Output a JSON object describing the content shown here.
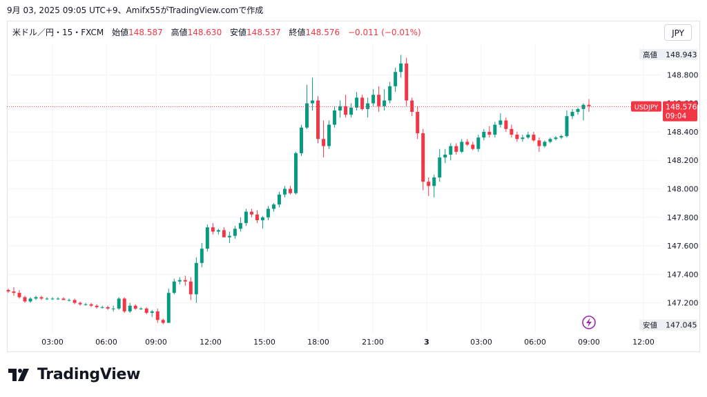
{
  "caption": "9月 03, 2025 09:05 UTC+9、Amifx55がTradingView.comで作成",
  "legend": {
    "symbol": "米ドル／円・15・FXCM",
    "open_label": "始値",
    "open": "148.587",
    "high_label": "高値",
    "high": "148.630",
    "low_label": "安値",
    "low": "148.537",
    "close_label": "終値",
    "close": "148.576",
    "change": "−0.011 (−0.01%)"
  },
  "currency_button": "JPY",
  "brand": "TradingView",
  "colors": {
    "up": "#089981",
    "down": "#f23645",
    "grid": "#f0f3fa",
    "axis_text": "#131722",
    "price_line": "#f23645"
  },
  "chart_data": {
    "type": "candlestick",
    "symbol": "USDJPY",
    "interval": "15",
    "x_ticks": [
      "03:00",
      "06:00",
      "09:00",
      "12:00",
      "15:00",
      "18:00",
      "21:00",
      "3",
      "03:00",
      "06:00",
      "09:00",
      "12:00"
    ],
    "y_ticks": [
      "148.800",
      "148.600",
      "148.400",
      "148.200",
      "148.000",
      "147.800",
      "147.600",
      "147.400",
      "147.200"
    ],
    "ylim": [
      146.99,
      149.015
    ],
    "high_marker": {
      "label": "高値",
      "value": "148.943"
    },
    "low_marker": {
      "label": "安値",
      "value": "147.045"
    },
    "last_price": {
      "symbol": "USDJPY",
      "value": "148.576",
      "time": "09:04"
    },
    "ohlc": [
      [
        147.29,
        147.3,
        147.27,
        147.28
      ],
      [
        147.28,
        147.31,
        147.25,
        147.27
      ],
      [
        147.27,
        147.29,
        147.23,
        147.24
      ],
      [
        147.24,
        147.25,
        147.2,
        147.21
      ],
      [
        147.21,
        147.24,
        147.2,
        147.23
      ],
      [
        147.23,
        147.25,
        147.22,
        147.24
      ],
      [
        147.24,
        147.25,
        147.22,
        147.23
      ],
      [
        147.23,
        147.24,
        147.22,
        147.23
      ],
      [
        147.23,
        147.24,
        147.22,
        147.23
      ],
      [
        147.23,
        147.24,
        147.22,
        147.23
      ],
      [
        147.23,
        147.24,
        147.22,
        147.22
      ],
      [
        147.22,
        147.23,
        147.21,
        147.22
      ],
      [
        147.22,
        147.23,
        147.19,
        147.2
      ],
      [
        147.2,
        147.21,
        147.18,
        147.19
      ],
      [
        147.19,
        147.2,
        147.18,
        147.19
      ],
      [
        147.19,
        147.2,
        147.17,
        147.18
      ],
      [
        147.18,
        147.19,
        147.16,
        147.17
      ],
      [
        147.17,
        147.18,
        147.16,
        147.17
      ],
      [
        147.17,
        147.18,
        147.15,
        147.16
      ],
      [
        147.16,
        147.18,
        147.14,
        147.16
      ],
      [
        147.16,
        147.24,
        147.15,
        147.23
      ],
      [
        147.23,
        147.24,
        147.13,
        147.14
      ],
      [
        147.14,
        147.2,
        147.13,
        147.18
      ],
      [
        147.18,
        147.19,
        147.15,
        147.16
      ],
      [
        147.16,
        147.17,
        147.15,
        147.16
      ],
      [
        147.16,
        147.17,
        147.12,
        147.13
      ],
      [
        147.13,
        147.15,
        147.1,
        147.14
      ],
      [
        147.14,
        147.16,
        147.06,
        147.08
      ],
      [
        147.08,
        147.09,
        147.05,
        147.06
      ],
      [
        147.06,
        147.3,
        147.06,
        147.27
      ],
      [
        147.27,
        147.37,
        147.26,
        147.35
      ],
      [
        147.35,
        147.38,
        147.33,
        147.36
      ],
      [
        147.36,
        147.39,
        147.32,
        147.35
      ],
      [
        147.35,
        147.38,
        147.22,
        147.26
      ],
      [
        147.26,
        147.52,
        147.2,
        147.48
      ],
      [
        147.48,
        147.62,
        147.45,
        147.58
      ],
      [
        147.58,
        147.75,
        147.56,
        147.73
      ],
      [
        147.73,
        147.76,
        147.68,
        147.7
      ],
      [
        147.7,
        147.72,
        147.68,
        147.71
      ],
      [
        147.71,
        147.73,
        147.66,
        147.66
      ],
      [
        147.66,
        147.7,
        147.62,
        147.67
      ],
      [
        147.67,
        147.74,
        147.65,
        147.72
      ],
      [
        147.72,
        147.8,
        147.7,
        147.76
      ],
      [
        147.76,
        147.86,
        147.74,
        147.84
      ],
      [
        147.84,
        147.86,
        147.8,
        147.82
      ],
      [
        147.82,
        147.85,
        147.76,
        147.78
      ],
      [
        147.78,
        147.81,
        147.72,
        147.8
      ],
      [
        147.8,
        147.88,
        147.78,
        147.86
      ],
      [
        147.86,
        147.9,
        147.84,
        147.89
      ],
      [
        147.89,
        147.98,
        147.87,
        147.96
      ],
      [
        147.96,
        148.02,
        147.94,
        148.0
      ],
      [
        148.0,
        148.02,
        147.96,
        147.97
      ],
      [
        147.97,
        148.26,
        147.96,
        148.25
      ],
      [
        148.25,
        148.45,
        148.23,
        148.43
      ],
      [
        148.43,
        148.73,
        148.42,
        148.6
      ],
      [
        148.6,
        148.78,
        148.55,
        148.62
      ],
      [
        148.62,
        148.65,
        148.32,
        148.35
      ],
      [
        148.35,
        148.48,
        148.22,
        148.3
      ],
      [
        148.3,
        148.48,
        148.28,
        148.45
      ],
      [
        148.45,
        148.58,
        148.43,
        148.55
      ],
      [
        148.55,
        148.62,
        148.5,
        148.58
      ],
      [
        148.58,
        148.66,
        148.5,
        148.52
      ],
      [
        148.52,
        148.6,
        148.5,
        148.57
      ],
      [
        148.57,
        148.68,
        148.55,
        148.64
      ],
      [
        148.64,
        148.66,
        148.55,
        148.56
      ],
      [
        148.56,
        148.64,
        148.5,
        148.6
      ],
      [
        148.6,
        148.7,
        148.58,
        148.66
      ],
      [
        148.66,
        148.72,
        148.54,
        148.58
      ],
      [
        148.58,
        148.7,
        148.55,
        148.62
      ],
      [
        148.62,
        148.75,
        148.6,
        148.72
      ],
      [
        148.72,
        148.85,
        148.68,
        148.82
      ],
      [
        148.82,
        148.94,
        148.78,
        148.88
      ],
      [
        148.88,
        148.92,
        148.58,
        148.62
      ],
      [
        148.62,
        148.64,
        148.51,
        148.54
      ],
      [
        148.54,
        148.58,
        148.35,
        148.39
      ],
      [
        148.39,
        148.42,
        147.99,
        148.05
      ],
      [
        148.05,
        148.08,
        147.95,
        148.02
      ],
      [
        148.02,
        148.1,
        147.94,
        148.08
      ],
      [
        148.08,
        148.28,
        148.05,
        148.22
      ],
      [
        148.22,
        148.28,
        148.18,
        148.24
      ],
      [
        148.24,
        148.32,
        148.2,
        148.3
      ],
      [
        148.3,
        148.32,
        148.24,
        148.26
      ],
      [
        148.26,
        148.35,
        148.25,
        148.33
      ],
      [
        148.33,
        148.35,
        148.3,
        148.31
      ],
      [
        148.31,
        148.33,
        148.27,
        148.28
      ],
      [
        148.28,
        148.38,
        148.26,
        148.36
      ],
      [
        148.36,
        148.42,
        148.34,
        148.4
      ],
      [
        148.4,
        148.44,
        148.36,
        148.38
      ],
      [
        148.38,
        148.47,
        148.36,
        148.45
      ],
      [
        148.45,
        148.53,
        148.43,
        148.48
      ],
      [
        148.48,
        148.5,
        148.4,
        148.42
      ],
      [
        148.42,
        148.45,
        148.36,
        148.38
      ],
      [
        148.38,
        148.4,
        148.33,
        148.35
      ],
      [
        148.35,
        148.38,
        148.33,
        148.36
      ],
      [
        148.36,
        148.4,
        148.35,
        148.38
      ],
      [
        148.38,
        148.4,
        148.33,
        148.34
      ],
      [
        148.34,
        148.36,
        148.26,
        148.3
      ],
      [
        148.3,
        148.34,
        148.29,
        148.33
      ],
      [
        148.33,
        148.36,
        148.32,
        148.35
      ],
      [
        148.35,
        148.37,
        148.34,
        148.36
      ],
      [
        148.36,
        148.38,
        148.35,
        148.37
      ],
      [
        148.37,
        148.55,
        148.36,
        148.51
      ],
      [
        148.51,
        148.56,
        148.49,
        148.54
      ],
      [
        148.54,
        148.57,
        148.52,
        148.56
      ],
      [
        148.56,
        148.6,
        148.48,
        148.59
      ],
      [
        148.59,
        148.63,
        148.54,
        148.58
      ]
    ]
  }
}
